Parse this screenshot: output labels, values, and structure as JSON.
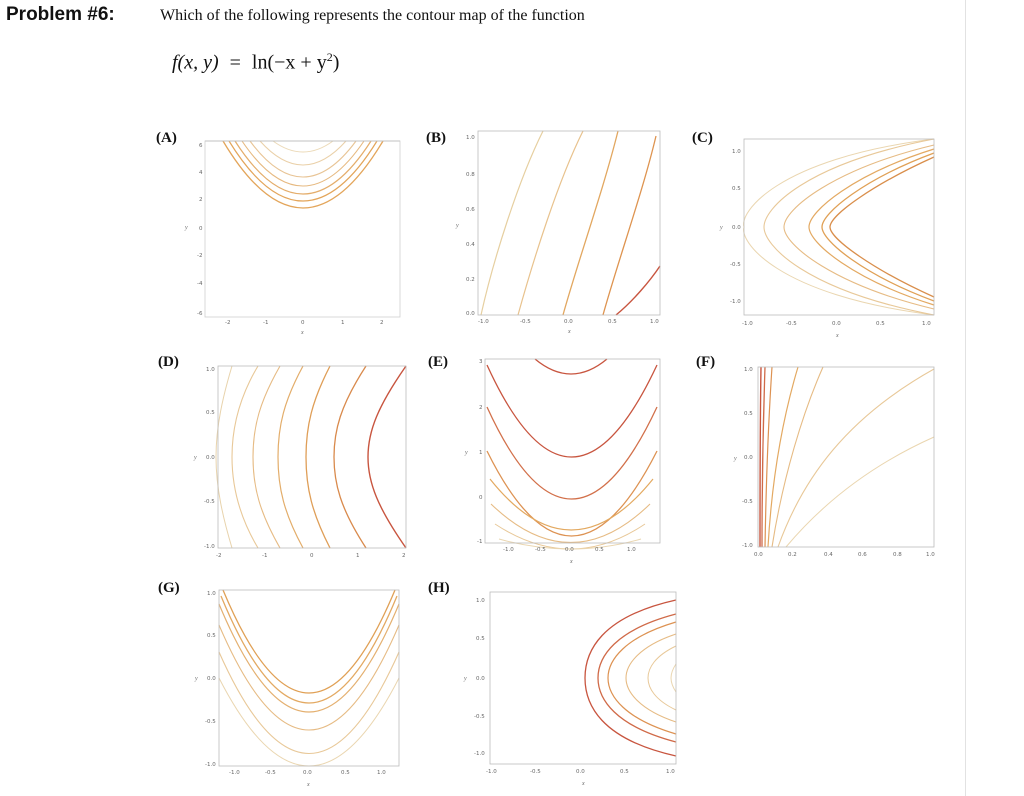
{
  "problem": {
    "title": "Problem #6:",
    "question": "Which of the following represents the contour map of the function",
    "formula": {
      "lhs": "f(x, y)",
      "eq": "=",
      "rhs_pre": "ln(−x + y",
      "exp": "2",
      "rhs_post": ")"
    }
  },
  "plots": [
    {
      "label": "(A)",
      "xticks": [
        "-2",
        "-1",
        "0",
        "1",
        "2"
      ],
      "yticks": [
        "6",
        "4",
        "2",
        "0",
        "-2",
        "-4",
        "-6"
      ],
      "xlabel": "x",
      "ylabel": "y"
    },
    {
      "label": "(B)",
      "xticks": [
        "-1.0",
        "-0.5",
        "0.0",
        "0.5",
        "1.0"
      ],
      "yticks": [
        "1.0",
        "0.8",
        "0.6",
        "0.4",
        "0.2",
        "0.0"
      ],
      "xlabel": "x",
      "ylabel": "y"
    },
    {
      "label": "(C)",
      "xticks": [
        "-1.0",
        "-0.5",
        "0.0",
        "0.5",
        "1.0"
      ],
      "yticks": [
        "1.0",
        "0.5",
        "0.0",
        "-0.5",
        "-1.0"
      ],
      "xlabel": "x",
      "ylabel": "y"
    },
    {
      "label": "(D)",
      "xticks": [
        "-2",
        "-1",
        "0",
        "1",
        "2"
      ],
      "yticks": [
        "1.0",
        "0.5",
        "0.0",
        "-0.5",
        "-1.0"
      ],
      "xlabel": "",
      "ylabel": "y"
    },
    {
      "label": "(E)",
      "xticks": [
        "-1.0",
        "-0.5",
        "0.0",
        "0.5",
        "1.0"
      ],
      "yticks": [
        "3",
        "2",
        "1",
        "0",
        "-1"
      ],
      "xlabel": "x",
      "ylabel": "y"
    },
    {
      "label": "(F)",
      "xticks": [
        "0.0",
        "0.2",
        "0.4",
        "0.6",
        "0.8",
        "1.0"
      ],
      "yticks": [
        "1.0",
        "0.5",
        "0.0",
        "-0.5",
        "-1.0"
      ],
      "xlabel": "",
      "ylabel": "y"
    },
    {
      "label": "(G)",
      "xticks": [
        "-1.0",
        "-0.5",
        "0.0",
        "0.5",
        "1.0"
      ],
      "yticks": [
        "1.0",
        "0.5",
        "0.0",
        "-0.5",
        "-1.0"
      ],
      "xlabel": "x",
      "ylabel": "y"
    },
    {
      "label": "(H)",
      "xticks": [
        "-1.0",
        "-0.5",
        "0.0",
        "0.5",
        "1.0"
      ],
      "yticks": [
        "1.0",
        "0.5",
        "0.0",
        "-0.5",
        "-1.0"
      ],
      "xlabel": "x",
      "ylabel": "y"
    }
  ],
  "colors": {
    "contour_light": "#e6cfa0",
    "contour_mid": "#e3a55a",
    "contour_dark": "#c8553f",
    "frame": "#999999",
    "divider": "#e2e2e2"
  }
}
